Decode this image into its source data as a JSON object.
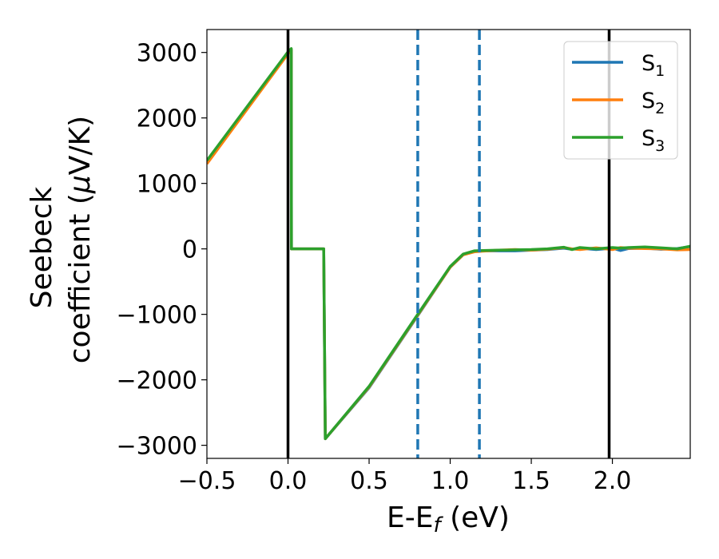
{
  "chart_data": {
    "type": "line",
    "xlabel": {
      "main": "E-E",
      "sub": "f",
      "unit": " (eV)"
    },
    "ylabel": {
      "line1": "Seebeck",
      "line2": "coefficient  (",
      "mu": "μ",
      "unit": "V/K)"
    },
    "xlim": [
      -0.5,
      2.48
    ],
    "ylim": [
      -3200,
      3350
    ],
    "xticks": [
      -0.5,
      0.0,
      0.5,
      1.0,
      1.5,
      2.0
    ],
    "xtick_labels": [
      "−0.5",
      "0.0",
      "0.5",
      "1.0",
      "1.5",
      "2.0"
    ],
    "yticks": [
      3000,
      2000,
      1000,
      0,
      -1000,
      -2000,
      -3000
    ],
    "ytick_labels": [
      "3000",
      "2000",
      "1000",
      "0",
      "−1000",
      "−2000",
      "−3000"
    ],
    "legend_position": "top-right",
    "vlines": [
      {
        "x": 0.0,
        "style": "solid",
        "color": "#000000"
      },
      {
        "x": 1.98,
        "style": "solid",
        "color": "#000000"
      },
      {
        "x": 0.8,
        "style": "dashed",
        "color": "#1f77b4"
      },
      {
        "x": 1.18,
        "style": "dashed",
        "color": "#1f77b4"
      }
    ],
    "series": [
      {
        "name": "S",
        "sub": "1",
        "color": "#1f77b4",
        "x": [
          -0.5,
          0.0,
          0.02,
          0.021,
          0.22,
          0.23,
          0.5,
          0.8,
          1.0,
          1.08,
          1.15,
          1.2,
          1.3,
          1.4,
          1.5,
          1.6,
          1.7,
          1.75,
          1.8,
          1.9,
          2.0,
          2.05,
          2.1,
          2.2,
          2.3,
          2.4,
          2.48
        ],
        "y": [
          1330,
          2990,
          3040,
          0,
          0,
          -2900,
          -2120,
          -1020,
          -280,
          -90,
          -40,
          -30,
          -30,
          -30,
          -20,
          -10,
          10,
          -5,
          10,
          -10,
          10,
          -25,
          5,
          10,
          -5,
          5,
          35
        ]
      },
      {
        "name": "S",
        "sub": "2",
        "color": "#ff7f0e",
        "x": [
          -0.5,
          0.0,
          0.02,
          0.021,
          0.22,
          0.23,
          0.5,
          0.8,
          1.0,
          1.08,
          1.15,
          1.2,
          1.3,
          1.4,
          1.5,
          1.6,
          1.7,
          1.75,
          1.8,
          1.9,
          2.0,
          2.05,
          2.1,
          2.2,
          2.3,
          2.4,
          2.48
        ],
        "y": [
          1300,
          2980,
          3040,
          0,
          0,
          -2900,
          -2110,
          -1010,
          -280,
          -90,
          -45,
          -35,
          -20,
          -10,
          -20,
          -5,
          20,
          0,
          -10,
          15,
          -10,
          20,
          10,
          5,
          0,
          -15,
          -10
        ]
      },
      {
        "name": "S",
        "sub": "3",
        "color": "#2ca02c",
        "x": [
          -0.5,
          0.0,
          0.02,
          0.021,
          0.22,
          0.23,
          0.5,
          0.8,
          1.0,
          1.08,
          1.15,
          1.2,
          1.3,
          1.4,
          1.5,
          1.6,
          1.7,
          1.75,
          1.8,
          1.9,
          2.0,
          2.05,
          2.1,
          2.2,
          2.3,
          2.4,
          2.48
        ],
        "y": [
          1350,
          3010,
          3060,
          0,
          0,
          -2900,
          -2100,
          -1000,
          -270,
          -80,
          -30,
          -25,
          -20,
          -15,
          -10,
          0,
          25,
          -10,
          20,
          0,
          20,
          10,
          20,
          30,
          15,
          0,
          40
        ]
      }
    ]
  }
}
